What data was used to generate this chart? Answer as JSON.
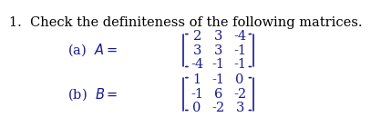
{
  "title": "1.  Check the definiteness of the following matrices.",
  "bg_color": "#ffffff",
  "text_color": "#1a1a8c",
  "title_color": "#000000",
  "matrix_A": [
    [
      2,
      3,
      -4
    ],
    [
      3,
      3,
      -1
    ],
    [
      -4,
      -1,
      -1
    ]
  ],
  "matrix_B": [
    [
      1,
      -1,
      0
    ],
    [
      -1,
      6,
      -2
    ],
    [
      0,
      -2,
      3
    ]
  ],
  "title_fontsize": 10.5,
  "body_fontsize": 10.5
}
